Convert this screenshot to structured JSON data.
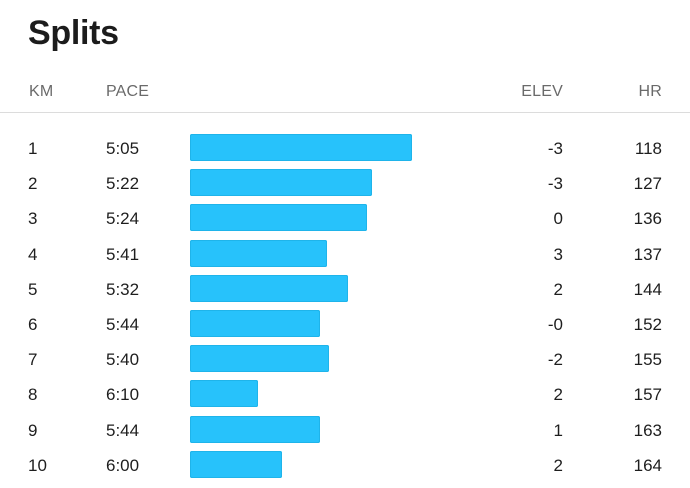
{
  "title": "Splits",
  "columns": {
    "km": "KM",
    "pace": "PACE",
    "elev": "ELEV",
    "hr": "HR"
  },
  "bar_color": "#27c2fb",
  "splits": [
    {
      "km": "1",
      "pace": "5:05",
      "elev": "-3",
      "hr": "118",
      "pace_seconds": 305
    },
    {
      "km": "2",
      "pace": "5:22",
      "elev": "-3",
      "hr": "127",
      "pace_seconds": 322
    },
    {
      "km": "3",
      "pace": "5:24",
      "elev": "0",
      "hr": "136",
      "pace_seconds": 324
    },
    {
      "km": "4",
      "pace": "5:41",
      "elev": "3",
      "hr": "137",
      "pace_seconds": 341
    },
    {
      "km": "5",
      "pace": "5:32",
      "elev": "2",
      "hr": "144",
      "pace_seconds": 332
    },
    {
      "km": "6",
      "pace": "5:44",
      "elev": "-0",
      "hr": "152",
      "pace_seconds": 344
    },
    {
      "km": "7",
      "pace": "5:40",
      "elev": "-2",
      "hr": "155",
      "pace_seconds": 340
    },
    {
      "km": "8",
      "pace": "6:10",
      "elev": "2",
      "hr": "157",
      "pace_seconds": 370
    },
    {
      "km": "9",
      "pace": "5:44",
      "elev": "1",
      "hr": "163",
      "pace_seconds": 344
    },
    {
      "km": "10",
      "pace": "6:00",
      "elev": "2",
      "hr": "164",
      "pace_seconds": 360
    }
  ]
}
